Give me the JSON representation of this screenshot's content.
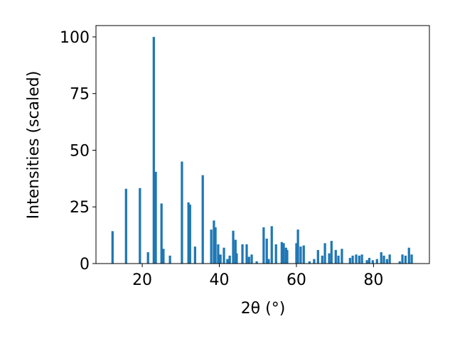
{
  "chart_data": {
    "type": "bar",
    "xlabel": "2θ (°)",
    "ylabel": "Intensities (scaled)",
    "color": "#1f77b4",
    "x": [
      12.3,
      15.8,
      19.4,
      21.5,
      23.0,
      23.5,
      25.0,
      25.5,
      27.2,
      30.3,
      32.0,
      32.4,
      33.7,
      35.7,
      37.9,
      38.6,
      39.0,
      39.7,
      40.3,
      41.2,
      42.1,
      42.7,
      43.6,
      44.2,
      44.5,
      46.0,
      47.1,
      47.7,
      48.4,
      49.7,
      51.5,
      52.3,
      52.8,
      53.6,
      54.7,
      56.2,
      56.7,
      57.3,
      57.6,
      60.0,
      60.4,
      61.1,
      61.9,
      63.4,
      64.6,
      65.6,
      66.7,
      67.4,
      68.5,
      69.1,
      70.2,
      70.9,
      71.8,
      73.9,
      74.6,
      75.5,
      76.3,
      77.0,
      78.3,
      78.9,
      79.8,
      80.9,
      82.0,
      82.7,
      83.5,
      84.2,
      86.8,
      87.5,
      88.3,
      89.2,
      89.9
    ],
    "values": [
      14.3,
      33,
      33.3,
      5,
      100,
      40.5,
      26.5,
      6.5,
      3.5,
      45,
      27,
      26,
      7.5,
      39,
      15,
      19,
      16,
      8.5,
      4,
      7,
      2,
      3.5,
      14.5,
      10.5,
      4.5,
      8.5,
      8.5,
      3,
      4,
      1,
      16,
      11,
      2,
      16.5,
      8.5,
      9.5,
      9,
      7,
      6,
      9,
      15,
      7.5,
      8,
      1,
      2,
      6,
      3.5,
      9,
      4.5,
      10,
      6,
      3.5,
      6.5,
      2.5,
      3.5,
      4,
      3.5,
      4,
      1.5,
      2.5,
      1.5,
      2,
      5,
      3.5,
      2,
      4,
      1,
      4,
      3.5,
      7,
      4
    ],
    "xlim": [
      8,
      94.5
    ],
    "ylim": [
      0,
      105
    ],
    "xticks": [
      20,
      40,
      60,
      80
    ],
    "yticks": [
      0,
      25,
      50,
      75,
      100
    ]
  }
}
